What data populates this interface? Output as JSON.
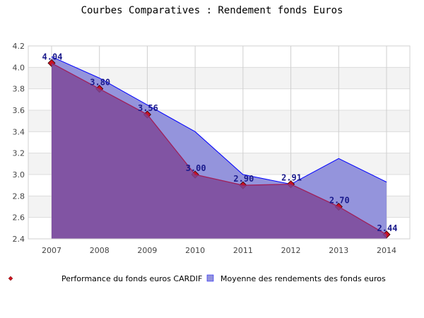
{
  "chart_data": {
    "type": "area",
    "title": "Courbes Comparatives : Rendement fonds Euros",
    "categories": [
      "2007",
      "2008",
      "2009",
      "2010",
      "2011",
      "2012",
      "2013",
      "2014"
    ],
    "series": [
      {
        "name": "Performance du fonds euros CARDIF",
        "values": [
          4.04,
          3.8,
          3.56,
          3.0,
          2.9,
          2.91,
          2.7,
          2.44
        ],
        "data_labels": [
          "4.04",
          "3.80",
          "3.56",
          "3.00",
          "2.90",
          "2.91",
          "2.70",
          "2.44"
        ],
        "color": "#8559a0",
        "line_color": "#a0205a",
        "marker_color": "#cc1020"
      },
      {
        "name": "Moyenne des rendements des fonds euros",
        "values": [
          4.1,
          3.9,
          3.65,
          3.4,
          3.0,
          2.91,
          3.15,
          2.93
        ],
        "color": "#9494dc",
        "line_color": "#0000ff"
      }
    ],
    "ylim": [
      2.4,
      4.2
    ],
    "yticks": [
      "2.4",
      "2.6",
      "2.8",
      "3.0",
      "3.2",
      "3.4",
      "3.6",
      "3.8",
      "4.0",
      "4.2"
    ],
    "grid": true,
    "legend_position": "bottom"
  }
}
